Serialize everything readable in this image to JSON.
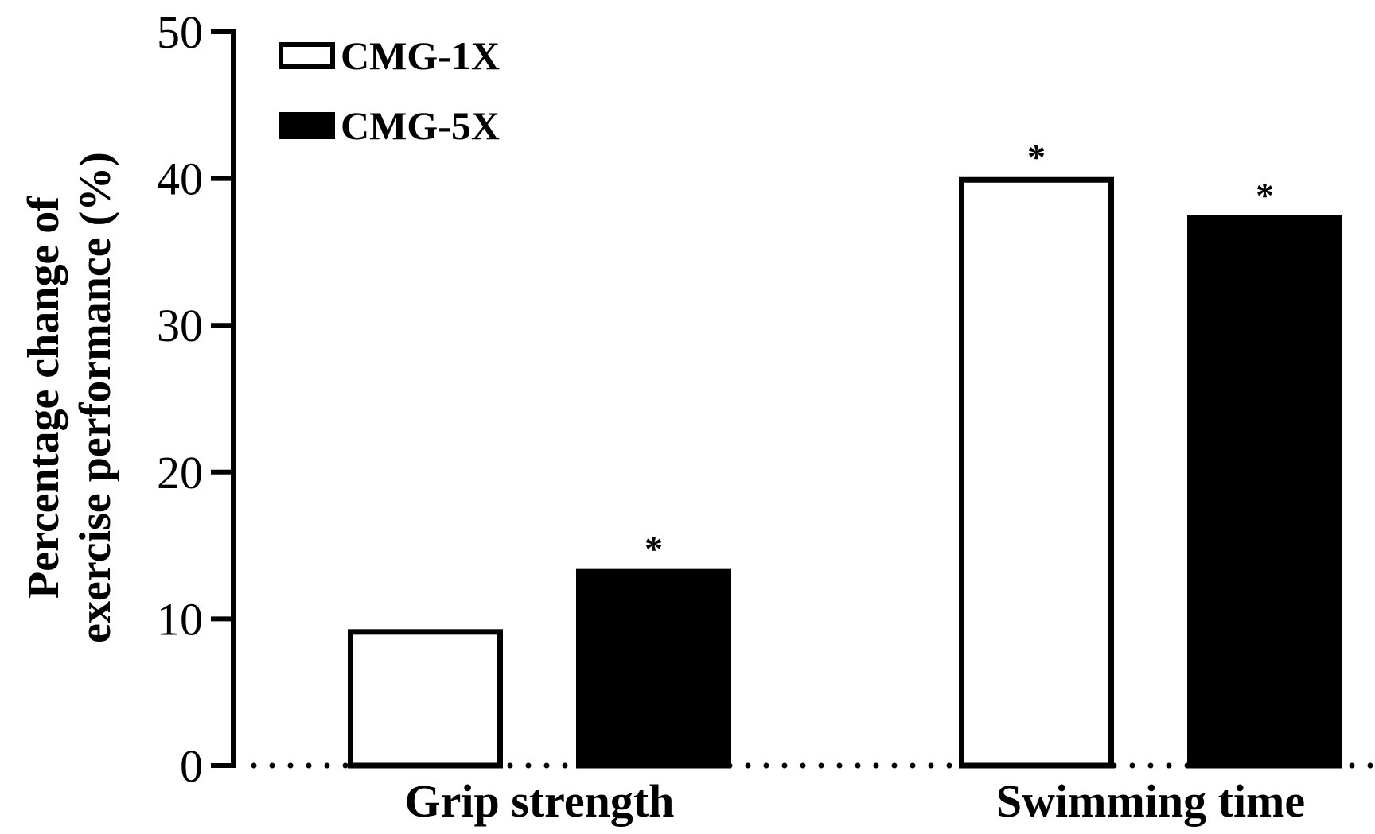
{
  "chart_data": {
    "type": "bar",
    "title": "",
    "ylabel_lines": [
      "Percentage change of",
      "exercise performance (%)"
    ],
    "xlabel": "",
    "ylim": [
      0,
      50
    ],
    "yticks": [
      0,
      10,
      20,
      30,
      40,
      50
    ],
    "categories": [
      "Grip strength",
      "Swimming time"
    ],
    "series": [
      {
        "name": "CMG-1X",
        "values": [
          9.3,
          40.1
        ],
        "significant": [
          false,
          true
        ],
        "fill": "#ffffff",
        "stroke": "#000000"
      },
      {
        "name": "CMG-5X",
        "values": [
          13.4,
          37.5
        ],
        "significant": [
          true,
          true
        ],
        "fill": "#000000",
        "stroke": "#000000"
      }
    ],
    "significance_marker": "*",
    "baseline_style": "dotted",
    "legend_position": "top-left",
    "grid": false
  }
}
